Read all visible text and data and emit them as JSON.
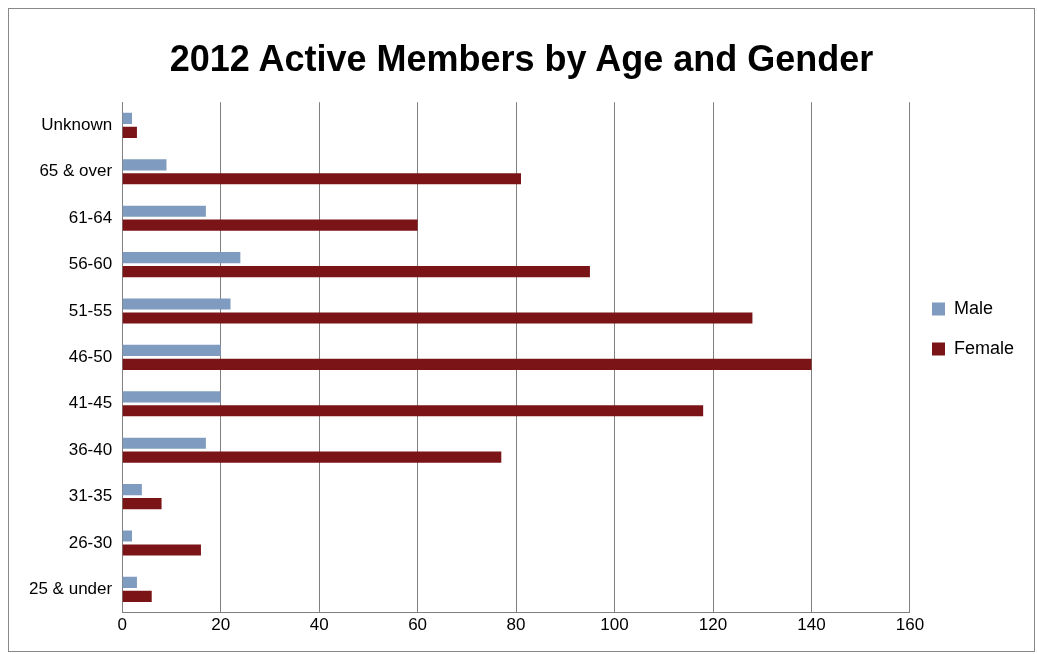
{
  "chart_data": {
    "type": "bar",
    "orientation": "horizontal",
    "title": "2012 Active Members by Age and Gender",
    "categories": [
      "Unknown",
      "65 & over",
      "61-64",
      "56-60",
      "51-55",
      "46-50",
      "41-45",
      "36-40",
      "31-35",
      "26-30",
      "25 & under"
    ],
    "series": [
      {
        "name": "Male",
        "color": "#7f9bbf",
        "values": [
          2,
          9,
          17,
          24,
          22,
          20,
          20,
          17,
          4,
          2,
          3
        ]
      },
      {
        "name": "Female",
        "color": "#7b1416",
        "values": [
          3,
          81,
          60,
          95,
          128,
          140,
          118,
          77,
          8,
          16,
          6
        ]
      }
    ],
    "xlim": [
      0,
      160
    ],
    "xticks": [
      0,
      20,
      40,
      60,
      80,
      100,
      120,
      140,
      160
    ],
    "grid": "x",
    "legend": "right"
  }
}
